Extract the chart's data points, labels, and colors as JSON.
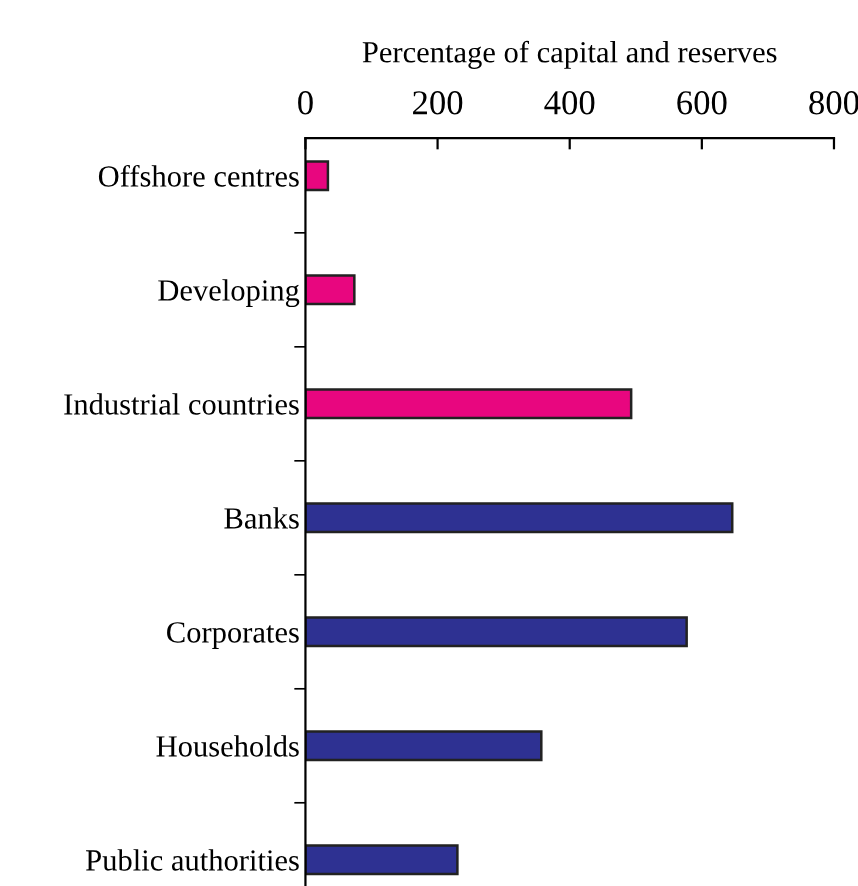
{
  "chart_data": {
    "type": "bar",
    "orientation": "horizontal",
    "xlabel": "Percentage of capital and reserves",
    "categories": [
      "Offshore centres",
      "Developing",
      "Industrial countries",
      "Banks",
      "Corporates",
      "Households",
      "Public authorities"
    ],
    "values": [
      34,
      74,
      493,
      646,
      577,
      357,
      230
    ],
    "colors": [
      "#e8067f",
      "#e8067f",
      "#e8067f",
      "#2e3192",
      "#2e3192",
      "#2e3192",
      "#2e3192"
    ],
    "xlim": [
      0,
      800
    ],
    "xticks": [
      0,
      200,
      400,
      600,
      800
    ],
    "grid": false,
    "legend": false
  }
}
